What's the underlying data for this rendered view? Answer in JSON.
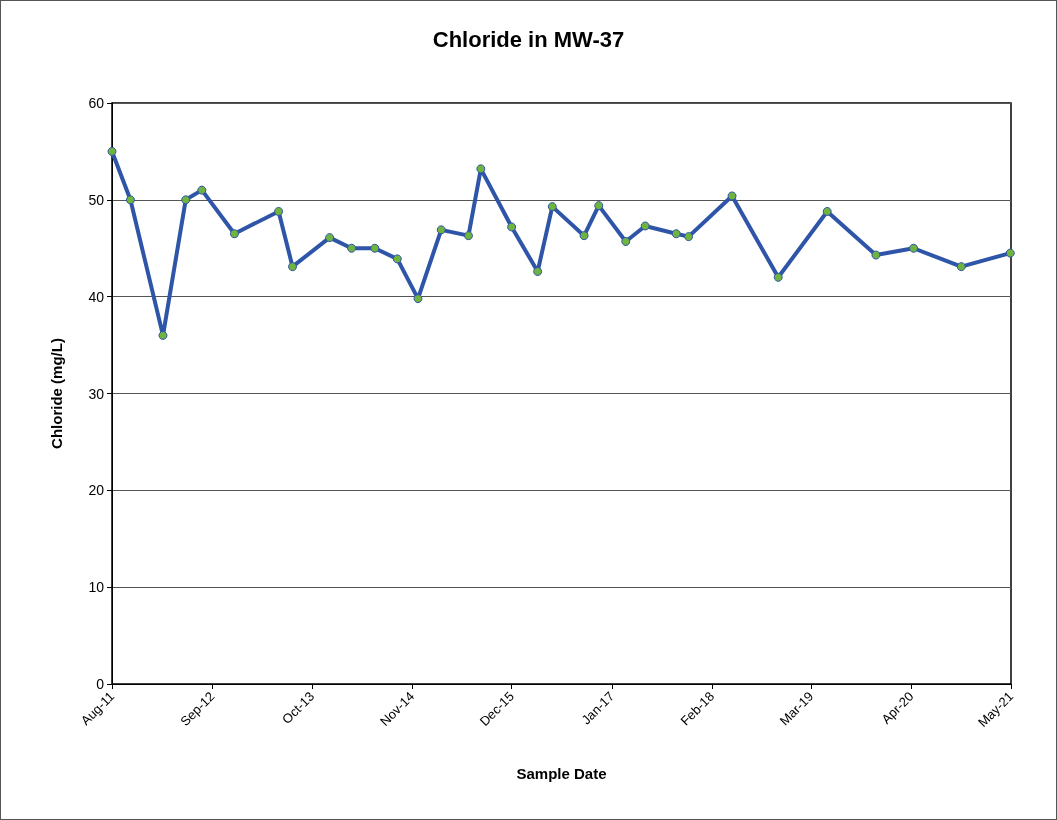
{
  "chart_data": {
    "type": "line",
    "title": "Chloride in MW-37",
    "xlabel": "Sample Date",
    "ylabel": "Chloride (mg/L)",
    "x": [
      "2011-08-01",
      "2011-10-13",
      "2012-02-19",
      "2012-05-19",
      "2012-07-22",
      "2012-11-28",
      "2013-05-22",
      "2013-07-16",
      "2013-12-10",
      "2014-03-07",
      "2014-06-07",
      "2014-09-04",
      "2014-11-25",
      "2015-02-25",
      "2015-06-13",
      "2015-08-01",
      "2015-12-01",
      "2016-03-13",
      "2016-05-10",
      "2016-09-13",
      "2016-11-10",
      "2017-02-25",
      "2017-05-13",
      "2017-09-13",
      "2017-11-01",
      "2018-04-22",
      "2018-10-22",
      "2019-05-04",
      "2019-11-13",
      "2020-04-10",
      "2020-10-16",
      "2021-04-28"
    ],
    "series": [
      {
        "color": "#2f55a8",
        "values": [
          55,
          50,
          36,
          50,
          51,
          46.5,
          48.8,
          43.1,
          46.1,
          45,
          45,
          43.9,
          39.8,
          46.9,
          46.3,
          53.2,
          47.2,
          42.6,
          49.3,
          46.3,
          49.4,
          45.7,
          47.3,
          46.5,
          46.2,
          50.4,
          42,
          48.8,
          44.3,
          45,
          43.1,
          44.5
        ]
      }
    ],
    "xlim": [
      "2011-08-01",
      "2021-05-01"
    ],
    "xticks": [
      {
        "value": "2011-08-01",
        "label": "Aug-11"
      },
      {
        "value": "2012-09-01",
        "label": "Sep-12"
      },
      {
        "value": "2013-10-01",
        "label": "Oct-13"
      },
      {
        "value": "2014-11-01",
        "label": "Nov-14"
      },
      {
        "value": "2015-12-01",
        "label": "Dec-15"
      },
      {
        "value": "2017-01-01",
        "label": "Jan-17"
      },
      {
        "value": "2018-02-01",
        "label": "Feb-18"
      },
      {
        "value": "2019-03-01",
        "label": "Mar-19"
      },
      {
        "value": "2020-04-01",
        "label": "Apr-20"
      },
      {
        "value": "2021-05-01",
        "label": "May-21"
      }
    ],
    "ylim": [
      0,
      60
    ],
    "yticks": [
      0,
      10,
      20,
      30,
      40,
      50,
      60
    ],
    "grid": "y",
    "marker": "circle",
    "line_style": "solid"
  }
}
